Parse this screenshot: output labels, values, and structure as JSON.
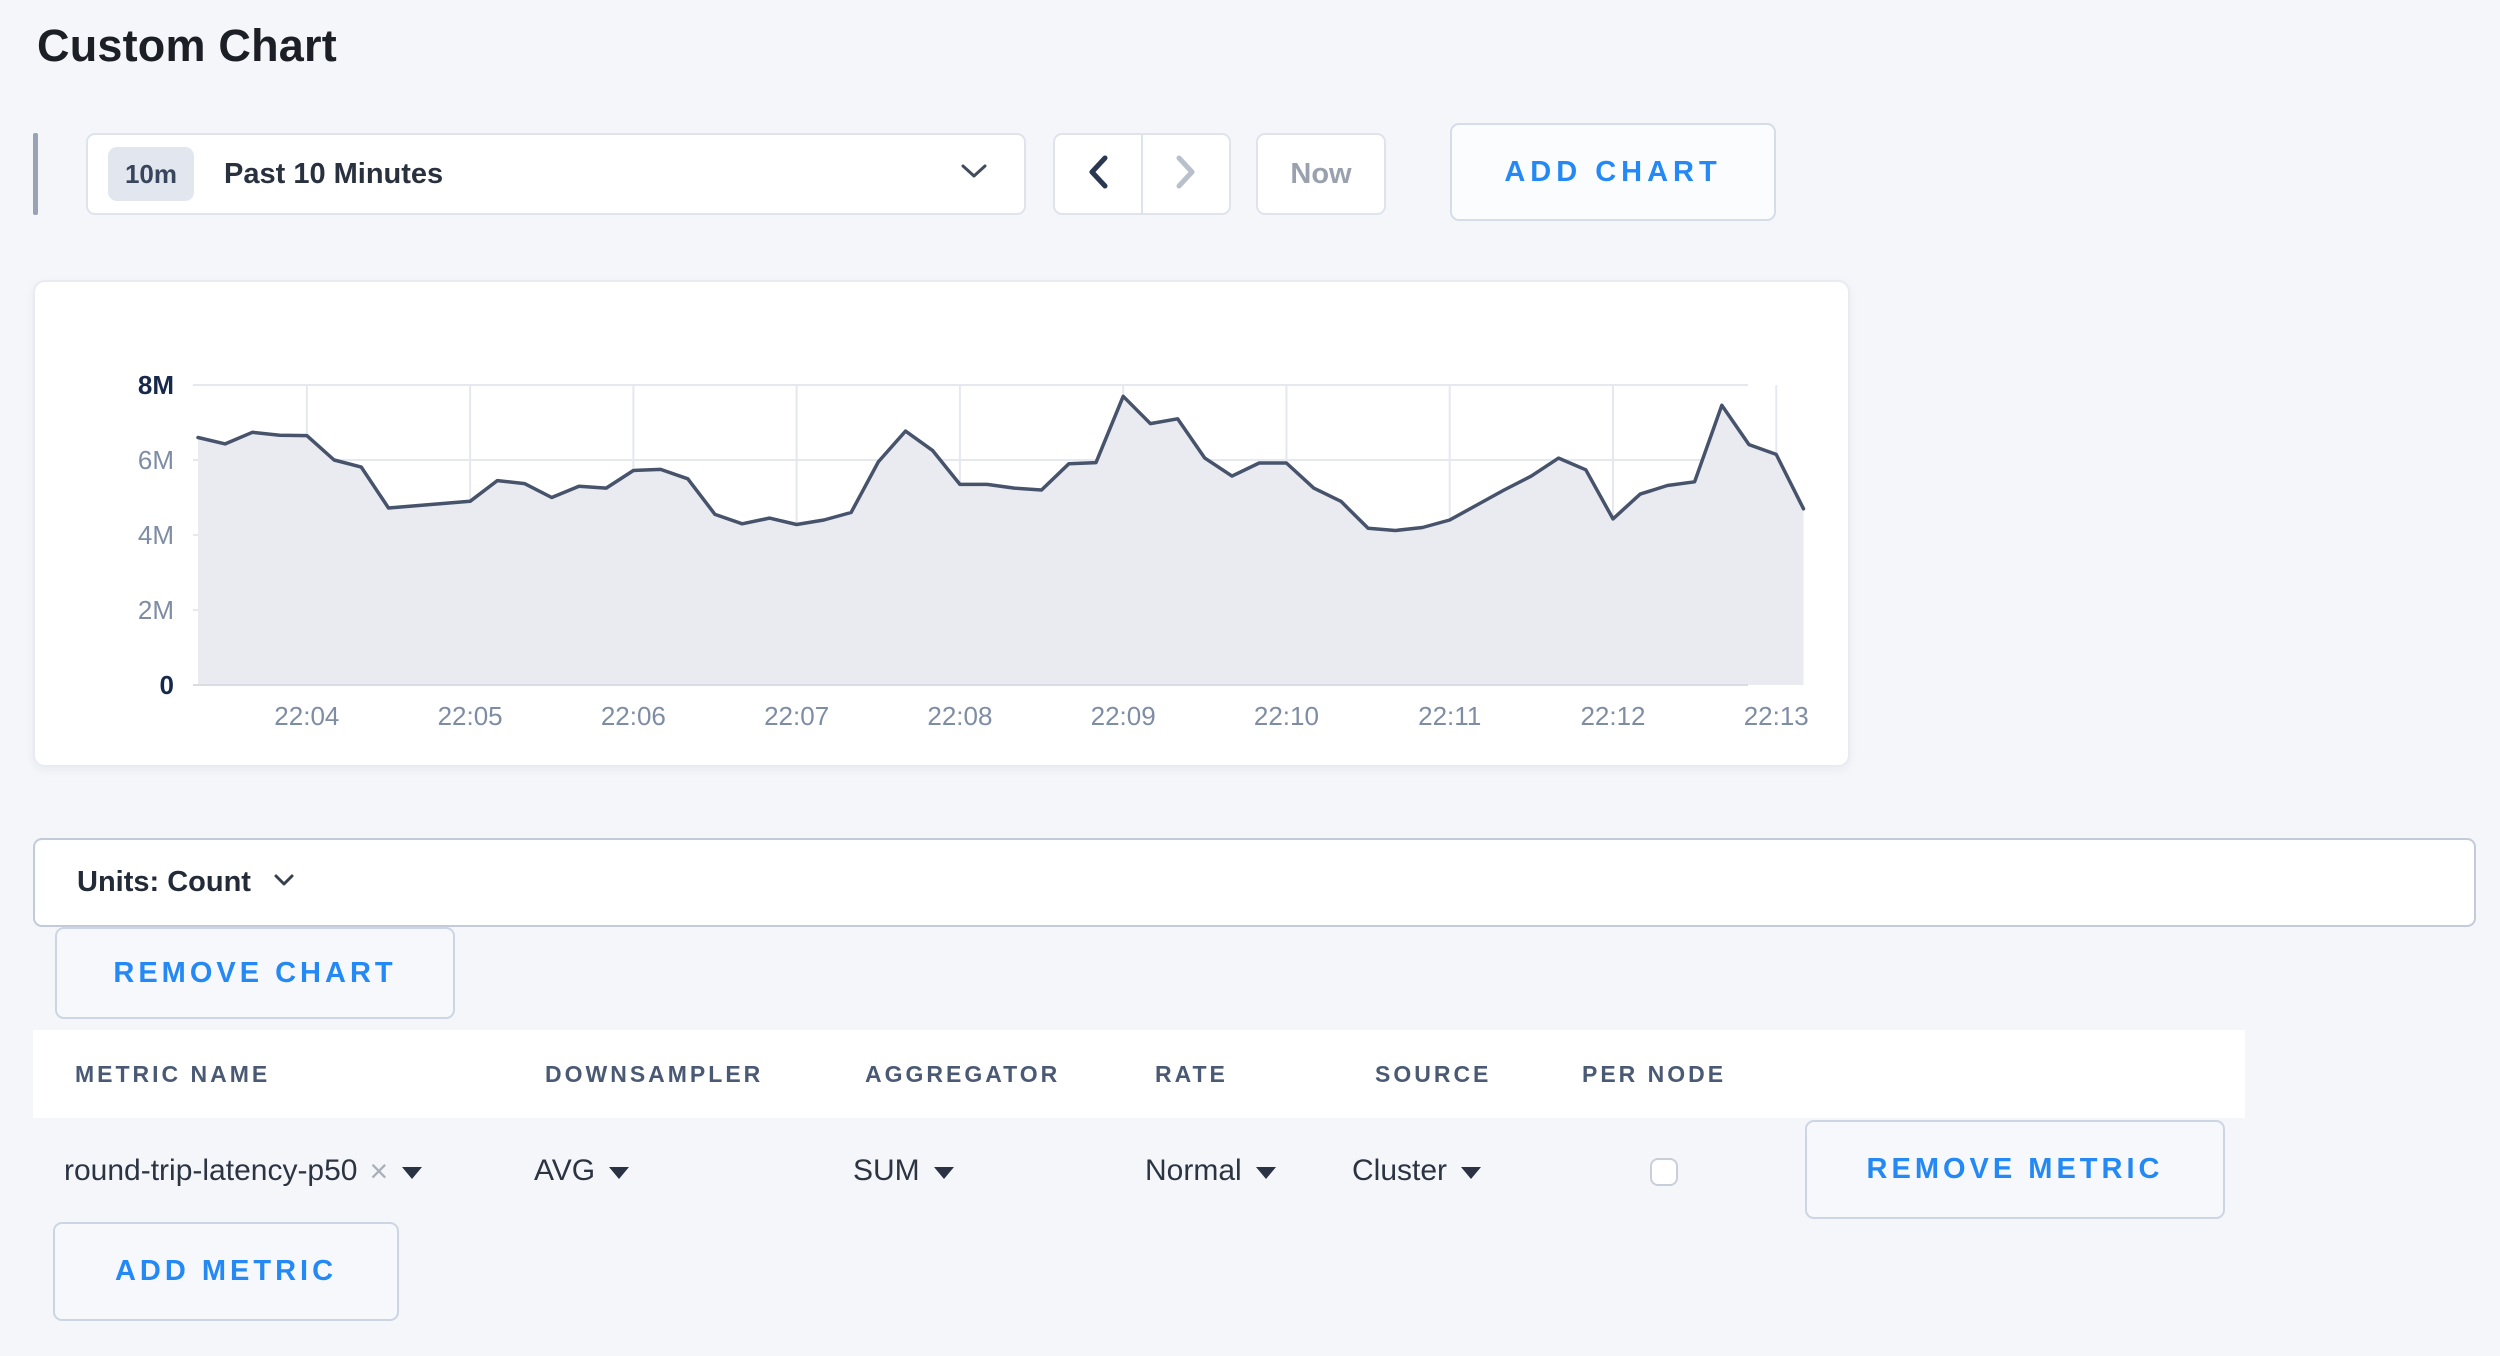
{
  "page": {
    "title": "Custom Chart"
  },
  "toolbar": {
    "time_badge": "10m",
    "time_label": "Past 10 Minutes",
    "prev_label": "previous-range",
    "next_label": "next-range",
    "now_label": "Now",
    "add_chart_label": "ADD CHART"
  },
  "colors": {
    "accent_blue": "#2489f5",
    "line": "#47536b",
    "fill": "#e9ebf1",
    "grid": "#e5e8ef",
    "baseline": "#d8dce4",
    "axis_label": "#7e8da4",
    "axis_label_bold": "#16294b",
    "page_bg": "#f4f6fa"
  },
  "chart_data": {
    "type": "area",
    "title": "",
    "ylabel": "",
    "xlabel": "",
    "ylim_millions": [
      0,
      8
    ],
    "y_tick_labels": [
      "0",
      "2M",
      "4M",
      "6M",
      "8M"
    ],
    "x_tick_labels": [
      "22:04",
      "22:05",
      "22:06",
      "22:07",
      "22:08",
      "22:09",
      "22:10",
      "22:11",
      "22:12",
      "22:13"
    ],
    "start_time": "22:03:20",
    "interval_seconds": 10,
    "points_before_first_tick": 4,
    "points_per_tick": 6,
    "grid": true,
    "legend": false,
    "values_millions": [
      6.6,
      6.43,
      6.74,
      6.66,
      6.65,
      6.0,
      5.81,
      4.72,
      4.78,
      4.84,
      4.9,
      5.45,
      5.37,
      5.0,
      5.3,
      5.25,
      5.72,
      5.75,
      5.5,
      4.55,
      4.3,
      4.45,
      4.28,
      4.4,
      4.6,
      5.95,
      6.77,
      6.25,
      5.35,
      5.35,
      5.25,
      5.2,
      5.9,
      5.93,
      7.7,
      6.97,
      7.1,
      6.05,
      5.57,
      5.92,
      5.92,
      5.25,
      4.9,
      4.18,
      4.12,
      4.2,
      4.4,
      4.8,
      5.2,
      5.57,
      6.05,
      5.74,
      4.43,
      5.09,
      5.32,
      5.42,
      7.46,
      6.41,
      6.15,
      4.7
    ]
  },
  "units_bar": {
    "label": "Units: Count"
  },
  "chart_actions": {
    "remove_chart_label": "REMOVE CHART"
  },
  "metrics_table": {
    "headers": [
      "METRIC NAME",
      "DOWNSAMPLER",
      "AGGREGATOR",
      "RATE",
      "SOURCE",
      "PER NODE"
    ],
    "rows": [
      {
        "metric_name": "round-trip-latency-p50",
        "remove_tag": "×",
        "downsampler": "AVG",
        "aggregator": "SUM",
        "rate": "Normal",
        "source": "Cluster",
        "per_node_checked": false,
        "remove_label": "REMOVE METRIC"
      }
    ],
    "add_metric_label": "ADD METRIC"
  }
}
